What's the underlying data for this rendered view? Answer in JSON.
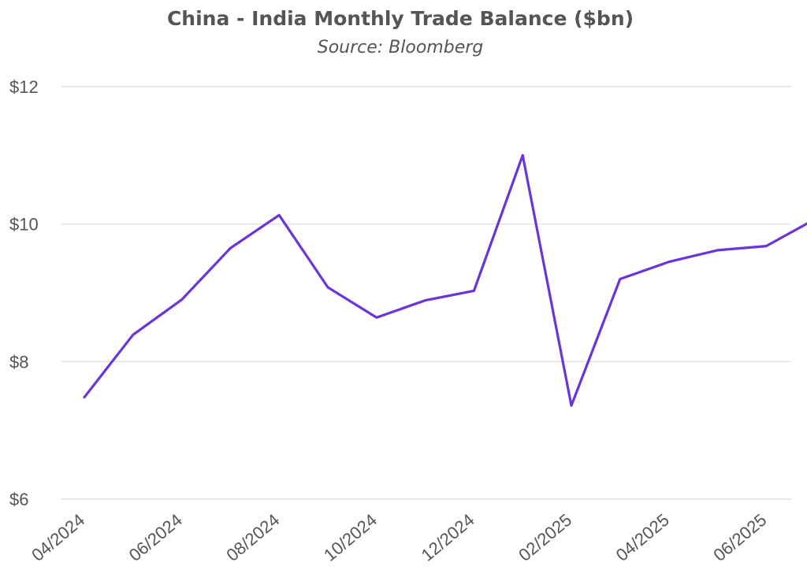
{
  "chart_data": {
    "type": "line",
    "title": "China - India Monthly Trade Balance ($bn)",
    "subtitle": "Source: Bloomberg",
    "xlabel": "",
    "ylabel": "",
    "ylim": [
      6,
      12
    ],
    "yticks": [
      6,
      8,
      10,
      12
    ],
    "ytick_labels": [
      "$6",
      "$8",
      "$10",
      "$12"
    ],
    "grid": true,
    "x_tick_labels": [
      "04/2024",
      "06/2024",
      "08/2024",
      "10/2024",
      "12/2024",
      "02/2025",
      "04/2025",
      "06/2025"
    ],
    "x": [
      "04/2024",
      "05/2024",
      "06/2024",
      "07/2024",
      "08/2024",
      "09/2024",
      "10/2024",
      "11/2024",
      "12/2024",
      "01/2025",
      "02/2025",
      "03/2025",
      "04/2025",
      "05/2025",
      "06/2025",
      "07/2025"
    ],
    "series": [
      {
        "color": "#6a35d8",
        "values": [
          7.48,
          8.39,
          8.9,
          9.65,
          10.13,
          9.08,
          8.64,
          8.89,
          9.03,
          11.0,
          7.36,
          9.2,
          9.45,
          9.62,
          9.68,
          10.07
        ]
      }
    ]
  }
}
